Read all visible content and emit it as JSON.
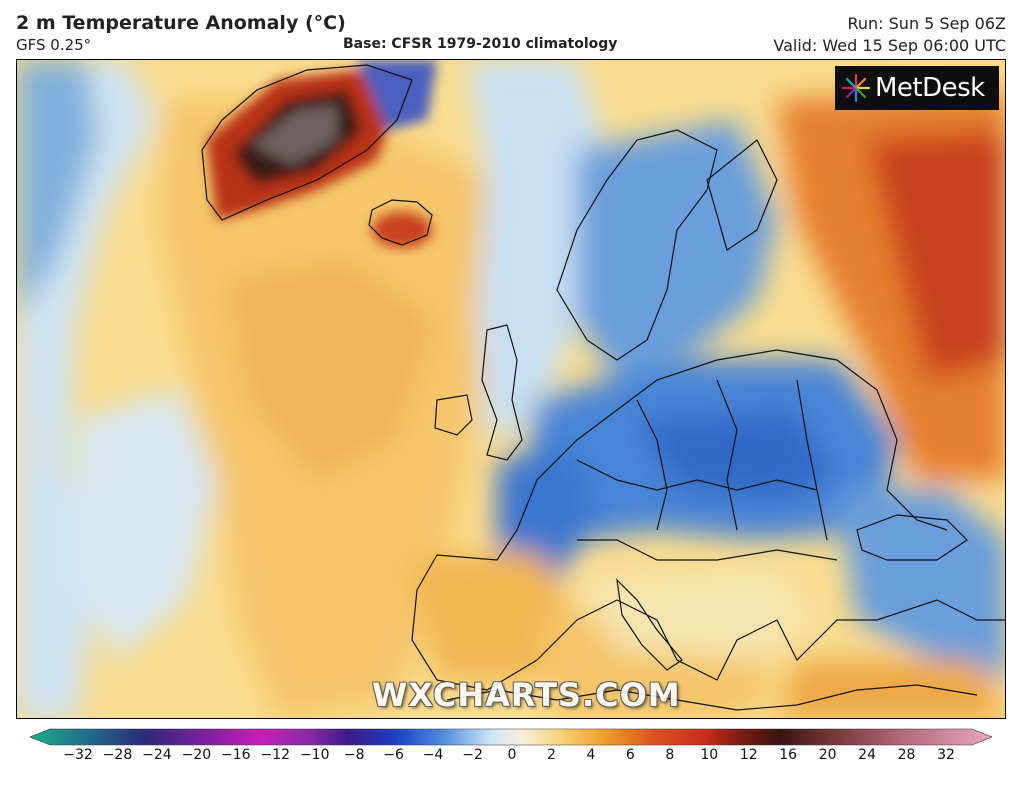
{
  "header": {
    "title": "2 m Temperature Anomaly (°C)",
    "model": "GFS 0.25°",
    "base": "Base: CFSR 1979-2010 climatology",
    "run": "Run: Sun 5 Sep 06Z",
    "valid": "Valid: Wed 15 Sep 06:00 UTC"
  },
  "map": {
    "brand_logo": "MetDesk",
    "watermark": "WXCHARTS.COM",
    "regions": [
      "Greenland",
      "Iceland",
      "North Atlantic",
      "Europe",
      "North Africa",
      "Western Russia"
    ]
  },
  "legend": {
    "unit": "°C",
    "ticks": [
      "−32",
      "−28",
      "−24",
      "−20",
      "−16",
      "−12",
      "−10",
      "−8",
      "−6",
      "−4",
      "−2",
      "0",
      "2",
      "4",
      "6",
      "8",
      "10",
      "12",
      "16",
      "20",
      "24",
      "28",
      "32"
    ],
    "colors": {
      "extreme_cold": "#1fae8c",
      "very_cold": "#7a1fa0",
      "cold_magenta": "#c61fb8",
      "cold_purple": "#3d1a8a",
      "cold_blue": "#1b3fbf",
      "cool_blue": "#4f8fe0",
      "slight_cool": "#cfe6f5",
      "neutral": "#f5f0e0",
      "slight_warm": "#f9d57a",
      "warm_orange": "#ef9a2a",
      "warm_red": "#c8301a",
      "hot_dark": "#3a1512",
      "very_hot_pink": "#e8a8c0"
    }
  }
}
